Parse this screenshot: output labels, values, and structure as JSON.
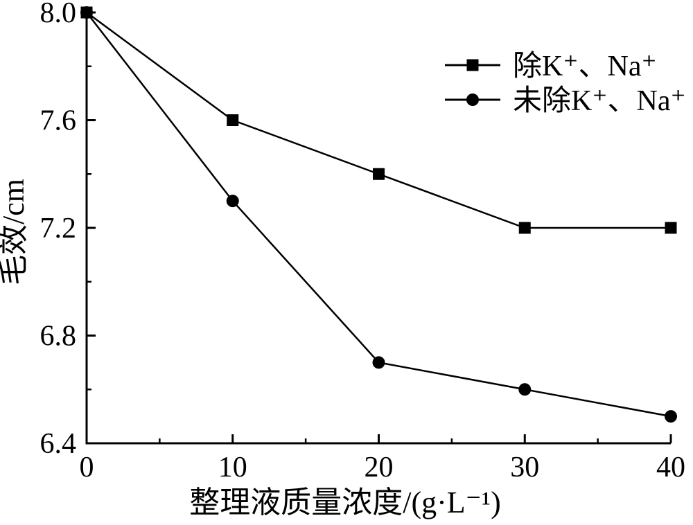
{
  "figure": {
    "background": "#ffffff",
    "foreground": "#000000"
  },
  "chart_data": {
    "type": "line",
    "title": "",
    "xlabel": "整理液质量浓度/(g·L⁻¹)",
    "ylabel": "毛效/cm",
    "x": [
      0,
      10,
      20,
      30,
      40
    ],
    "series": [
      {
        "name": "除K⁺、Na⁺",
        "marker": "square",
        "color": "#000000",
        "values": [
          8.0,
          7.6,
          7.4,
          7.2,
          7.2
        ]
      },
      {
        "name": "未除K⁺、Na⁺",
        "marker": "circle",
        "color": "#000000",
        "values": [
          8.0,
          7.3,
          6.7,
          6.6,
          6.5
        ]
      }
    ],
    "xlim": [
      0,
      40
    ],
    "ylim": [
      6.4,
      8.0
    ],
    "x_major_ticks": [
      0,
      10,
      20,
      30,
      40
    ],
    "x_minor_ticks": [
      5,
      15,
      25,
      35
    ],
    "y_major_ticks": [
      6.4,
      6.8,
      7.2,
      7.6,
      8.0
    ],
    "y_minor_ticks": [
      6.6,
      7.0,
      7.4,
      7.8
    ],
    "y_tick_decimals": 1,
    "grid": false,
    "legend_position": "upper right"
  }
}
